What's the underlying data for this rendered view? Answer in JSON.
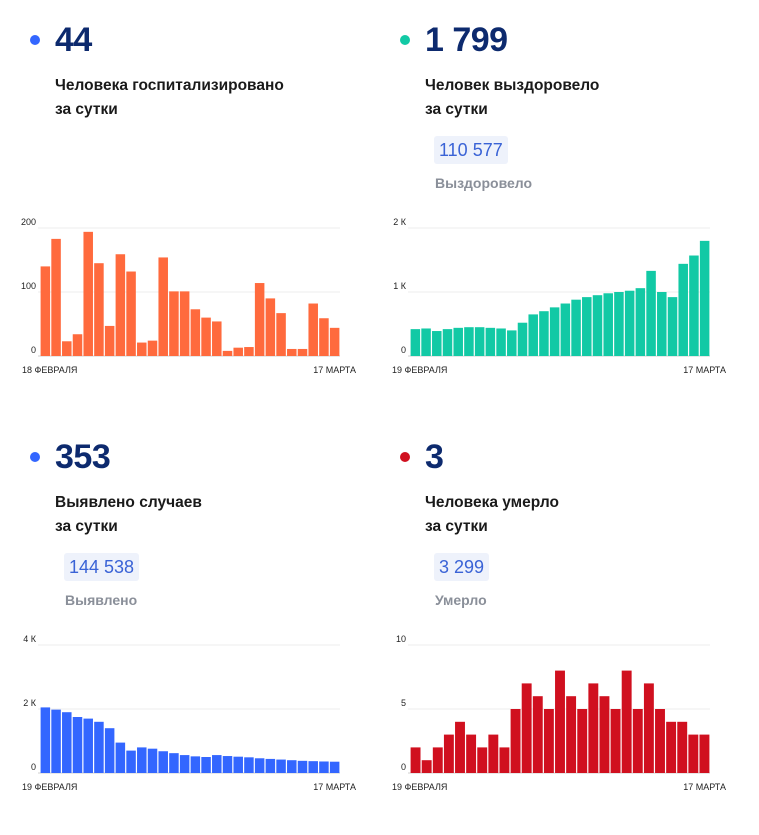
{
  "panels": [
    {
      "value": "44",
      "desc_line1": "Человека госпитализировано",
      "desc_line2": "за сутки",
      "total": "",
      "total_label": "",
      "color": "#ff6a3d",
      "dot_color": "#3366ff"
    },
    {
      "value": "1 799",
      "desc_line1": "Человек выздоровело",
      "desc_line2": "за сутки",
      "total": "110 577",
      "total_label": "Выздоровело",
      "color": "#12c9a5",
      "dot_color": "#12c9a5"
    },
    {
      "value": "353",
      "desc_line1": "Выявлено случаев",
      "desc_line2": "за сутки",
      "total": "144 538",
      "total_label": "Выявлено",
      "color": "#3366ff",
      "dot_color": "#3366ff"
    },
    {
      "value": "3",
      "desc_line1": "Человека умерло",
      "desc_line2": "за сутки",
      "total": "3 299",
      "total_label": "Умерло",
      "color": "#d0101f",
      "dot_color": "#d0101f"
    }
  ],
  "chart_data": [
    {
      "type": "bar",
      "ylim": [
        0,
        200
      ],
      "yticks": [
        0,
        100,
        200
      ],
      "ytick_labels": [
        "0",
        "100",
        "200"
      ],
      "x_start_label": "18 ФЕВРАЛЯ",
      "x_end_label": "17 МАРТА",
      "values": [
        140,
        183,
        23,
        34,
        194,
        145,
        47,
        159,
        132,
        21,
        24,
        154,
        101,
        101,
        73,
        60,
        54,
        8,
        13,
        14,
        114,
        90,
        67,
        11,
        11,
        82,
        59,
        44
      ]
    },
    {
      "type": "bar",
      "ylim": [
        0,
        2000
      ],
      "yticks": [
        0,
        1000,
        2000
      ],
      "ytick_labels": [
        "0",
        "1 К",
        "2 К"
      ],
      "x_start_label": "19 ФЕВРАЛЯ",
      "x_end_label": "17 МАРТА",
      "values": [
        420,
        430,
        390,
        420,
        440,
        450,
        450,
        440,
        430,
        400,
        520,
        650,
        700,
        760,
        820,
        880,
        920,
        950,
        980,
        1000,
        1020,
        1060,
        1330,
        1000,
        920,
        1440,
        1570,
        1799
      ]
    },
    {
      "type": "bar",
      "ylim": [
        0,
        4000
      ],
      "yticks": [
        0,
        2000,
        4000
      ],
      "ytick_labels": [
        "0",
        "2 К",
        "4 К"
      ],
      "x_start_label": "19 ФЕВРАЛЯ",
      "x_end_label": "17 МАРТА",
      "values": [
        2050,
        1980,
        1900,
        1750,
        1700,
        1600,
        1400,
        950,
        700,
        800,
        760,
        680,
        620,
        560,
        520,
        500,
        560,
        530,
        510,
        490,
        460,
        440,
        420,
        400,
        380,
        370,
        360,
        353
      ]
    },
    {
      "type": "bar",
      "ylim": [
        0,
        10
      ],
      "yticks": [
        0,
        5,
        10
      ],
      "ytick_labels": [
        "0",
        "5",
        "10"
      ],
      "x_start_label": "19 ФЕВРАЛЯ",
      "x_end_label": "17 МАРТА",
      "values": [
        2,
        1,
        2,
        3,
        4,
        3,
        2,
        3,
        2,
        5,
        7,
        6,
        5,
        8,
        6,
        5,
        7,
        6,
        5,
        8,
        5,
        7,
        5,
        4,
        4,
        3,
        3
      ]
    }
  ]
}
